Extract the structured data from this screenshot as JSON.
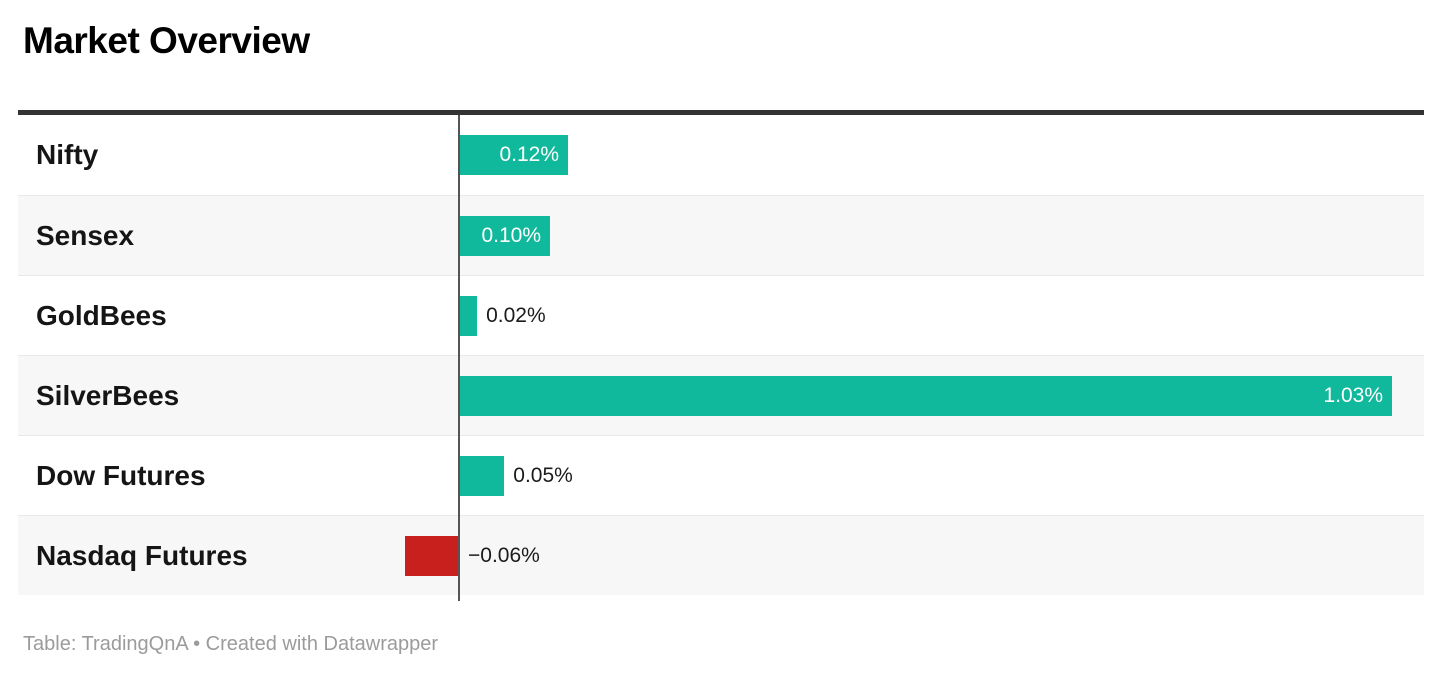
{
  "header": {
    "title": "Market Overview"
  },
  "footer": {
    "text": "Table: TradingQnA • Created with Datawrapper"
  },
  "chart_data": {
    "type": "bar",
    "orientation": "horizontal",
    "title": "Market Overview",
    "categories": [
      "Nifty",
      "Sensex",
      "GoldBees",
      "SilverBees",
      "Dow Futures",
      "Nasdaq Futures"
    ],
    "values": [
      0.12,
      0.1,
      0.02,
      1.03,
      0.05,
      -0.06
    ],
    "value_labels": [
      "0.12%",
      "0.10%",
      "0.02%",
      "1.03%",
      "0.05%",
      "−0.06%"
    ],
    "label_placement": [
      "inside",
      "inside",
      "outside",
      "inside",
      "outside",
      "outside"
    ],
    "unit": "%",
    "baseline": 0,
    "xlim": [
      -0.49,
      1.06
    ],
    "grid": false,
    "legend": false,
    "row_striping": true,
    "colors": {
      "positive": "#10b99b",
      "negative": "#c7201d",
      "label_inside": "#ffffff",
      "label_outside": "#1b1b1b",
      "row_alt_background": "#f7f7f7",
      "top_rule": "#333333",
      "axis_line": "#555555"
    }
  }
}
